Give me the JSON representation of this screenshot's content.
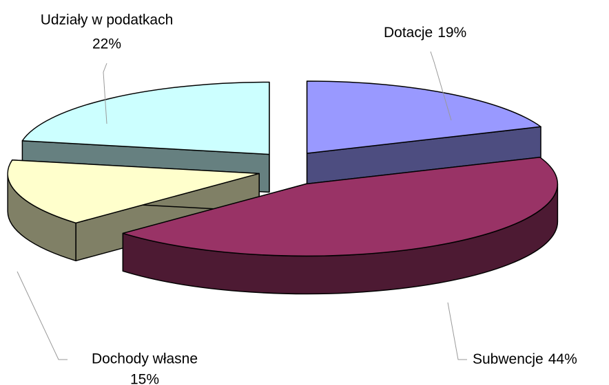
{
  "chart_data": {
    "type": "pie3d",
    "categories": [
      "Dotacje",
      "Subwencje",
      "Dochody własne",
      "Udziały w podatkach"
    ],
    "values": [
      19,
      44,
      15,
      22
    ],
    "value_labels": [
      "19%",
      "44%",
      "15%",
      "22%"
    ],
    "colors": [
      "#9999ff",
      "#993366",
      "#ffffcc",
      "#ccffff"
    ],
    "side_colors": [
      "#4d4d80",
      "#4d1a33",
      "#808066",
      "#668080"
    ]
  }
}
